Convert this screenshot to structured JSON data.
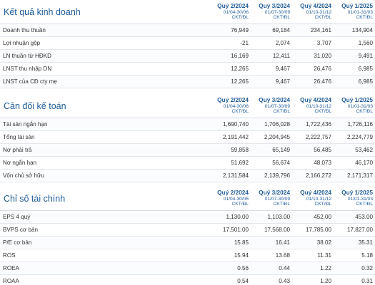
{
  "sections": [
    {
      "title": "Kết quả kinh doanh",
      "columns": [
        {
          "quarter": "Quý 2/2024",
          "range": "01/04-30/06",
          "unit": "CKT/ĐL"
        },
        {
          "quarter": "Quý 3/2024",
          "range": "01/07-30/09",
          "unit": "CKT/ĐL"
        },
        {
          "quarter": "Quý 4/2024",
          "range": "01/10-31/12",
          "unit": "CKT/ĐL"
        },
        {
          "quarter": "Quý 1/2025",
          "range": "01/01-31/03",
          "unit": "CKT/ĐL"
        }
      ],
      "rows": [
        {
          "label": "Doanh thu thuần",
          "values": [
            "76,949",
            "69,184",
            "234,161",
            "134,904"
          ]
        },
        {
          "label": "Lợi nhuận gộp",
          "values": [
            "-21",
            "2,074",
            "3,707",
            "1,560"
          ]
        },
        {
          "label": "LN thuần từ HĐKD",
          "values": [
            "16,169",
            "12,411",
            "31,020",
            "9,491"
          ]
        },
        {
          "label": "LNST thu nhập DN",
          "values": [
            "12,265",
            "9,467",
            "26,476",
            "6,985"
          ]
        },
        {
          "label": "LNST của CĐ cty mẹ",
          "values": [
            "12,265",
            "9,467",
            "26,476",
            "6,985"
          ]
        }
      ]
    },
    {
      "title": "Cân đối kế toán",
      "columns": [
        {
          "quarter": "Quý 2/2024",
          "range": "01/04-30/06",
          "unit": "CKT/ĐL"
        },
        {
          "quarter": "Quý 3/2024",
          "range": "01/07-30/09",
          "unit": "CKT/ĐL"
        },
        {
          "quarter": "Quý 4/2024",
          "range": "01/10-31/12",
          "unit": "CKT/ĐL"
        },
        {
          "quarter": "Quý 1/2025",
          "range": "01/01-31/03",
          "unit": "CKT/ĐL"
        }
      ],
      "rows": [
        {
          "label": "Tài sản ngắn hạn",
          "values": [
            "1,690,740",
            "1,706,028",
            "1,722,436",
            "1,726,116"
          ]
        },
        {
          "label": "Tổng tài sản",
          "values": [
            "2,191,442",
            "2,204,945",
            "2,222,757",
            "2,224,779"
          ]
        },
        {
          "label": "Nợ phải trả",
          "values": [
            "59,858",
            "65,149",
            "56,485",
            "53,462"
          ]
        },
        {
          "label": "Nợ ngắn hạn",
          "values": [
            "51,692",
            "56,674",
            "48,073",
            "46,170"
          ]
        },
        {
          "label": "Vốn chủ sở hữu",
          "values": [
            "2,131,584",
            "2,139,796",
            "2,166,272",
            "2,171,317"
          ]
        }
      ]
    },
    {
      "title": "Chỉ số tài chính",
      "columns": [
        {
          "quarter": "Quý 2/2024",
          "range": "01/04-30/06",
          "unit": "CKT/ĐL"
        },
        {
          "quarter": "Quý 3/2024",
          "range": "01/07-30/09",
          "unit": "CKT/ĐL"
        },
        {
          "quarter": "Quý 4/2024",
          "range": "01/10-31/12",
          "unit": "CKT/ĐL"
        },
        {
          "quarter": "Quý 1/2025",
          "range": "01/01-31/03",
          "unit": "CKT/ĐL"
        }
      ],
      "rows": [
        {
          "label": "EPS 4 quý",
          "values": [
            "1,130.00",
            "1,103.00",
            "452.00",
            "453.00"
          ]
        },
        {
          "label": "BVPS cơ bản",
          "values": [
            "17,501.00",
            "17,568.00",
            "17,785.00",
            "17,827.00"
          ]
        },
        {
          "label": "P/E cơ bản",
          "values": [
            "15.85",
            "16.41",
            "38.02",
            "35.31"
          ]
        },
        {
          "label": "ROS",
          "values": [
            "15.94",
            "13.68",
            "11.31",
            "5.18"
          ]
        },
        {
          "label": "ROEA",
          "values": [
            "0.56",
            "0.44",
            "1.22",
            "0.32"
          ]
        },
        {
          "label": "ROAA",
          "values": [
            "0.54",
            "0.43",
            "1.20",
            "0.31"
          ]
        }
      ]
    }
  ]
}
